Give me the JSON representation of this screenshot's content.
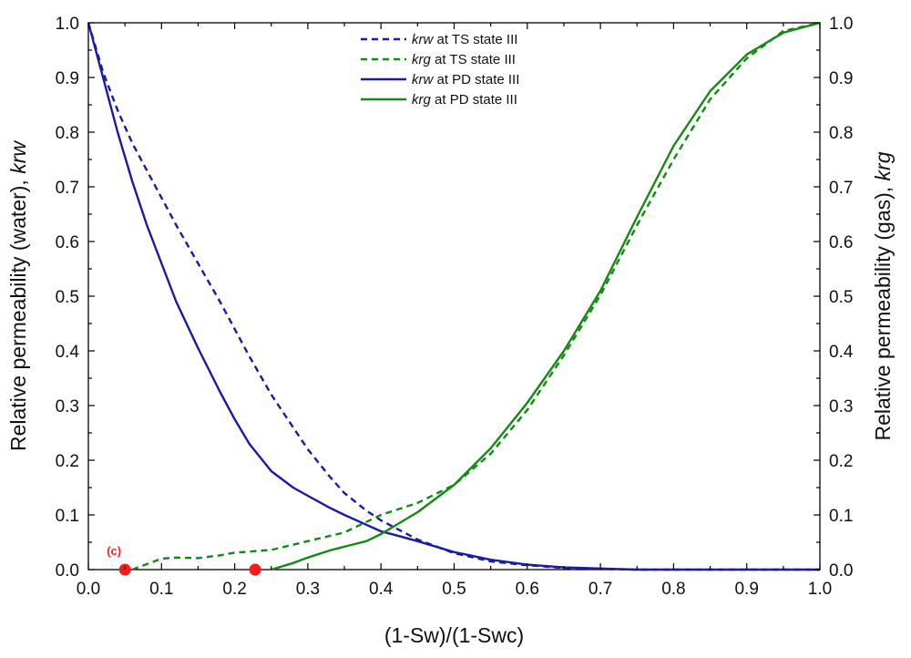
{
  "chart_data": {
    "type": "line",
    "xlabel": "(1-Sw)/(1-Swc)",
    "ylabel_left": {
      "text": "Relative permeability (water), ",
      "var": "krw"
    },
    "ylabel_right": {
      "text": "Relative permeability (gas), ",
      "var": "krg"
    },
    "xlim": [
      0,
      1
    ],
    "ylim_left": [
      0,
      1
    ],
    "ylim_right": [
      0,
      1
    ],
    "grid": false,
    "legend_position": "top-center",
    "x_ticks": [
      "0.0",
      "0.1",
      "0.2",
      "0.3",
      "0.4",
      "0.5",
      "0.6",
      "0.7",
      "0.8",
      "0.9",
      "1.0"
    ],
    "y_ticks": [
      "0.0",
      "0.1",
      "0.2",
      "0.3",
      "0.4",
      "0.5",
      "0.6",
      "0.7",
      "0.8",
      "0.9",
      "1.0"
    ],
    "series": [
      {
        "name": "krw at TS state III",
        "var": "krw",
        "rest": " at TS state III",
        "color": "#1a1aa6",
        "style": "dashed",
        "x": [
          0,
          0.02,
          0.04,
          0.06,
          0.08,
          0.1,
          0.12,
          0.15,
          0.18,
          0.2,
          0.22,
          0.25,
          0.28,
          0.3,
          0.33,
          0.35,
          0.38,
          0.4,
          0.45,
          0.5,
          0.55,
          0.6,
          0.65,
          0.7,
          0.75,
          0.8,
          0.9,
          1.0
        ],
        "y": [
          1.0,
          0.91,
          0.84,
          0.78,
          0.73,
          0.68,
          0.63,
          0.56,
          0.49,
          0.44,
          0.39,
          0.32,
          0.26,
          0.22,
          0.17,
          0.14,
          0.108,
          0.09,
          0.055,
          0.03,
          0.015,
          0.008,
          0.003,
          0.001,
          0.0,
          0.0,
          0.0,
          0.0
        ]
      },
      {
        "name": "krg at TS state III",
        "var": "krg",
        "rest": " at TS state III",
        "color": "#138a13",
        "style": "dashed",
        "x": [
          0.06,
          0.08,
          0.1,
          0.12,
          0.15,
          0.18,
          0.2,
          0.25,
          0.3,
          0.35,
          0.4,
          0.45,
          0.5,
          0.55,
          0.6,
          0.65,
          0.7,
          0.75,
          0.8,
          0.85,
          0.9,
          0.95,
          1.0
        ],
        "y": [
          0.0,
          0.01,
          0.02,
          0.022,
          0.021,
          0.026,
          0.031,
          0.036,
          0.052,
          0.068,
          0.1,
          0.122,
          0.155,
          0.212,
          0.292,
          0.392,
          0.502,
          0.63,
          0.75,
          0.86,
          0.935,
          0.985,
          1.0
        ]
      },
      {
        "name": "krw at PD state III",
        "var": "krw",
        "rest": " at PD state III",
        "color": "#1a1aa6",
        "style": "solid",
        "x": [
          0,
          0.02,
          0.04,
          0.06,
          0.08,
          0.1,
          0.12,
          0.15,
          0.18,
          0.2,
          0.22,
          0.25,
          0.28,
          0.3,
          0.33,
          0.35,
          0.38,
          0.4,
          0.42,
          0.45,
          0.5,
          0.55,
          0.6,
          0.65,
          0.7,
          0.75,
          0.8,
          0.9,
          1.0
        ],
        "y": [
          1.0,
          0.9,
          0.8,
          0.71,
          0.63,
          0.56,
          0.49,
          0.405,
          0.325,
          0.275,
          0.23,
          0.18,
          0.15,
          0.135,
          0.113,
          0.1,
          0.082,
          0.07,
          0.063,
          0.052,
          0.032,
          0.018,
          0.009,
          0.004,
          0.002,
          0.0,
          0.0,
          0.0,
          0.0
        ]
      },
      {
        "name": "krg at PD state III",
        "var": "krg",
        "rest": " at PD state III",
        "color": "#138a13",
        "style": "solid",
        "x": [
          0.25,
          0.28,
          0.3,
          0.33,
          0.35,
          0.38,
          0.4,
          0.45,
          0.5,
          0.55,
          0.6,
          0.65,
          0.7,
          0.75,
          0.8,
          0.85,
          0.9,
          0.95,
          1.0
        ],
        "y": [
          0.0,
          0.012,
          0.022,
          0.035,
          0.042,
          0.052,
          0.065,
          0.105,
          0.155,
          0.222,
          0.305,
          0.4,
          0.51,
          0.645,
          0.775,
          0.875,
          0.942,
          0.982,
          1.0
        ]
      }
    ],
    "markers": [
      {
        "x": 0.05,
        "y": 0,
        "color": "#ff1a1a"
      },
      {
        "x": 0.228,
        "y": 0,
        "color": "#ff1a1a"
      }
    ],
    "annotation": {
      "text": "(c)",
      "x": 0.05,
      "y": 0.02,
      "color": "#ff1a1a"
    }
  }
}
